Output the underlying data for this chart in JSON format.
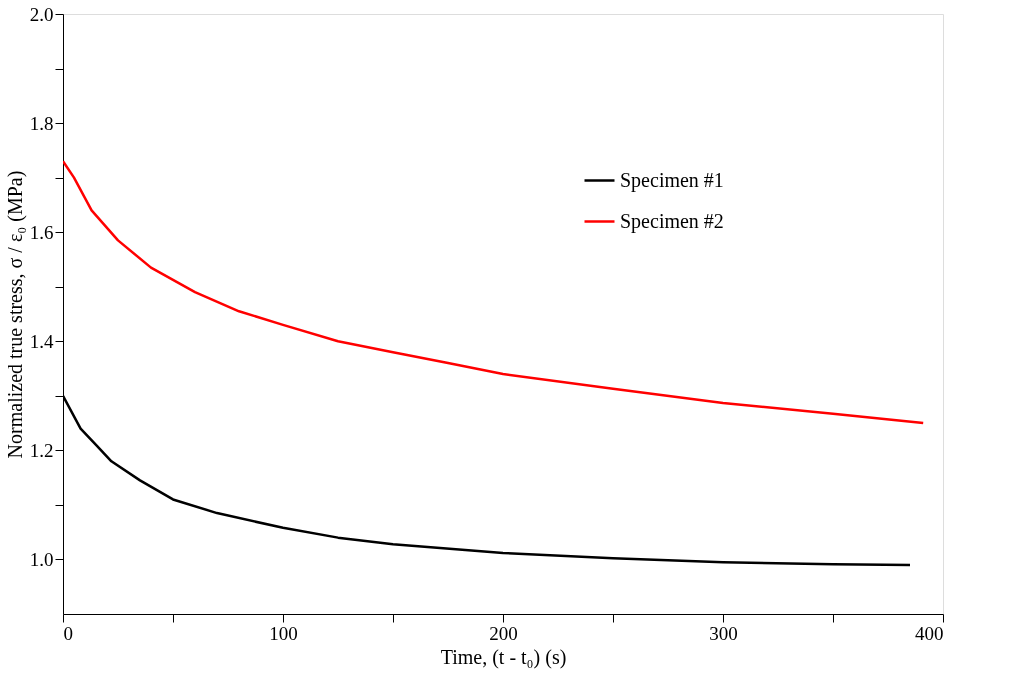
{
  "chart_data": {
    "type": "line",
    "xlabel": "Time, (t - t₀)  (s)",
    "ylabel": "Normalized true stress, σ / ε₀ (MPa)",
    "xlim": [
      0,
      400
    ],
    "ylim": [
      0.9,
      2.0
    ],
    "xticks": [
      0,
      {
        "value": 50,
        "label": null
      },
      100,
      {
        "value": 150,
        "label": null
      },
      200,
      {
        "value": 250,
        "label": null
      },
      300,
      {
        "value": 350,
        "label": null
      },
      400
    ],
    "yticks": [
      {
        "value": 1.0,
        "label": "1.0"
      },
      {
        "value": 1.1,
        "label": null
      },
      {
        "value": 1.2,
        "label": "1.2"
      },
      {
        "value": 1.3,
        "label": null
      },
      {
        "value": 1.4,
        "label": "1.4"
      },
      {
        "value": 1.5,
        "label": null
      },
      {
        "value": 1.6,
        "label": "1.6"
      },
      {
        "value": 1.7,
        "label": null
      },
      {
        "value": 1.8,
        "label": "1.8"
      },
      {
        "value": 1.9,
        "label": null
      },
      {
        "value": 2.0,
        "label": "2.0"
      }
    ],
    "grid": false,
    "legend": "top right",
    "marker": "none",
    "line_style": "solid",
    "series": [
      {
        "name": "Specimen #1",
        "color": "#000000",
        "x": [
          0,
          8,
          15,
          22,
          35,
          50,
          70,
          100,
          125,
          150,
          200,
          250,
          300,
          350,
          385
        ],
        "values": [
          1.3,
          1.24,
          1.21,
          1.18,
          1.145,
          1.11,
          1.085,
          1.058,
          1.04,
          1.028,
          1.012,
          1.002,
          0.995,
          0.991,
          0.99
        ]
      },
      {
        "name": "Specimen #2",
        "color": "#ff0000",
        "x": [
          0,
          5,
          13,
          25,
          40,
          60,
          80,
          100,
          125,
          150,
          175,
          200,
          250,
          300,
          350,
          391
        ],
        "values": [
          1.73,
          1.7,
          1.64,
          1.585,
          1.535,
          1.49,
          1.455,
          1.43,
          1.4,
          1.38,
          1.36,
          1.34,
          1.313,
          1.287,
          1.267,
          1.25
        ]
      }
    ]
  }
}
